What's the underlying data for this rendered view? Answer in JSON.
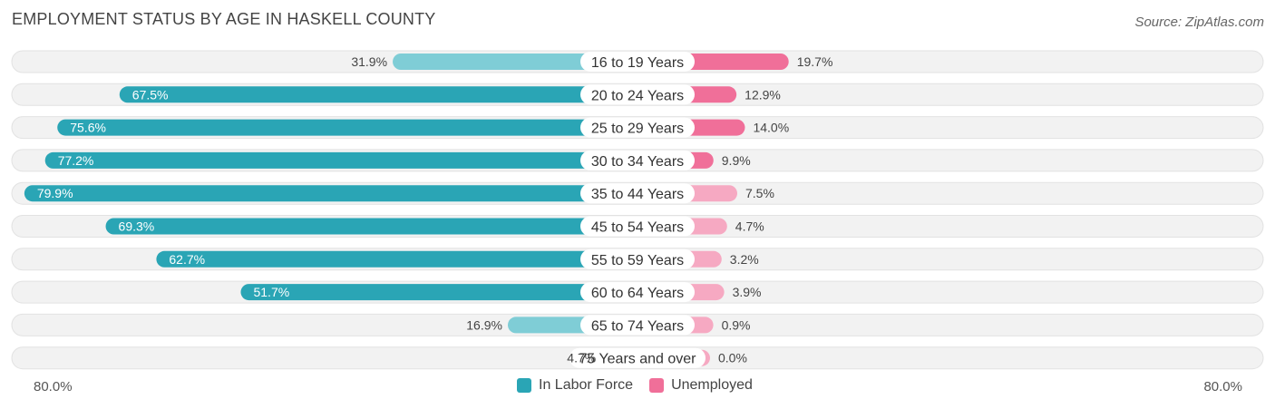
{
  "title": "EMPLOYMENT STATUS BY AGE IN HASKELL COUNTY",
  "source": "Source: ZipAtlas.com",
  "colors": {
    "labor_strong": "#2aa5b5",
    "labor_light": "#7fcdd6",
    "unemployed_strong": "#f06f99",
    "unemployed_light": "#f6a9c2"
  },
  "axis": {
    "left_label": "80.0%",
    "right_label": "80.0%"
  },
  "legend": [
    {
      "name": "In Labor Force",
      "color": "#2aa5b5"
    },
    {
      "name": "Unemployed",
      "color": "#f06f99"
    }
  ],
  "chart_data": {
    "type": "bar",
    "orientation": "horizontal-diverging",
    "title": "EMPLOYMENT STATUS BY AGE IN HASKELL COUNTY",
    "xlim": [
      -80,
      80
    ],
    "categories": [
      "16 to 19 Years",
      "20 to 24 Years",
      "25 to 29 Years",
      "30 to 34 Years",
      "35 to 44 Years",
      "45 to 54 Years",
      "55 to 59 Years",
      "60 to 64 Years",
      "65 to 74 Years",
      "75 Years and over"
    ],
    "series": [
      {
        "name": "In Labor Force",
        "values": [
          31.9,
          67.5,
          75.6,
          77.2,
          79.9,
          69.3,
          62.7,
          51.7,
          16.9,
          4.7
        ],
        "labels": [
          "31.9%",
          "67.5%",
          "75.6%",
          "77.2%",
          "79.9%",
          "69.3%",
          "62.7%",
          "51.7%",
          "16.9%",
          "4.7%"
        ]
      },
      {
        "name": "Unemployed",
        "values": [
          19.7,
          12.9,
          14.0,
          9.9,
          7.5,
          4.7,
          3.2,
          3.9,
          0.9,
          0.0
        ],
        "labels": [
          "19.7%",
          "12.9%",
          "14.0%",
          "9.9%",
          "7.5%",
          "4.7%",
          "3.2%",
          "3.9%",
          "0.9%",
          "0.0%"
        ]
      }
    ]
  }
}
